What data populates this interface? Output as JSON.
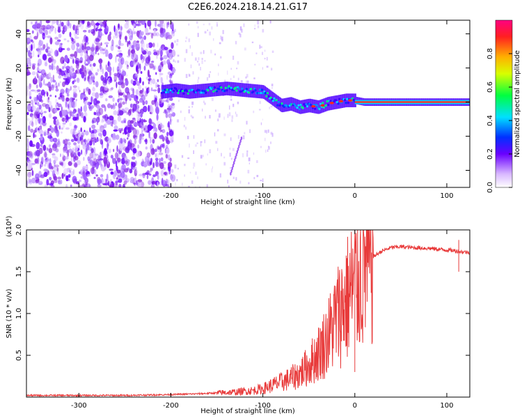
{
  "title": "C2E6.2024.218.14.21.G17",
  "chart_data": [
    {
      "type": "heatmap",
      "xlabel": "Height of straight line (km)",
      "ylabel": "Frequency (Hz)",
      "xlim": [
        -357,
        125
      ],
      "ylim": [
        -50,
        48
      ],
      "x_ticks": [
        -300,
        -200,
        -100,
        0,
        100
      ],
      "y_ticks": [
        -40,
        -20,
        0,
        20,
        40
      ],
      "colorbar": {
        "label": "Normalized spectral amplitude",
        "range": [
          0,
          1
        ],
        "ticks": [
          "0.0",
          "0.2",
          "0.4",
          "0.6",
          "0.8"
        ]
      },
      "ridge": {
        "x": [
          -210,
          -195,
          -180,
          -160,
          -140,
          -120,
          -100,
          -90,
          -80,
          -70,
          -60,
          -50,
          -40,
          -30,
          -20,
          -10,
          0,
          10,
          50,
          100,
          125
        ],
        "y": [
          6,
          7,
          6,
          7,
          8,
          7,
          6,
          2,
          -2,
          -1,
          -3,
          -2,
          -3,
          -1,
          0,
          1,
          1,
          0,
          0,
          0,
          0
        ]
      }
    },
    {
      "type": "line",
      "xlabel": "Height of straight line (km)",
      "ylabel": "SNR (10 * v/v)",
      "y_multiplier": "(x10⁴)",
      "xlim": [
        -357,
        125
      ],
      "ylim": [
        0,
        2.0
      ],
      "x_ticks": [
        -300,
        -200,
        -100,
        0,
        100
      ],
      "y_ticks": [
        "0.5",
        "1.0",
        "1.5",
        "2.0"
      ],
      "color": "#e83a3a",
      "series": [
        {
          "x": [
            -357,
            -300,
            -250,
            -200,
            -170,
            -150,
            -130,
            -110,
            -100,
            -90,
            -80,
            -70,
            -60,
            -50,
            -40,
            -30,
            -20,
            -10,
            0,
            10,
            20,
            30,
            40,
            50,
            60,
            80,
            100,
            110,
            115,
            125
          ],
          "y": [
            0.02,
            0.02,
            0.02,
            0.03,
            0.04,
            0.05,
            0.06,
            0.08,
            0.1,
            0.14,
            0.18,
            0.22,
            0.28,
            0.38,
            0.52,
            0.7,
            0.95,
            1.15,
            1.35,
            1.55,
            1.68,
            1.75,
            1.79,
            1.8,
            1.79,
            1.78,
            1.76,
            1.75,
            1.74,
            1.73
          ]
        }
      ]
    }
  ]
}
